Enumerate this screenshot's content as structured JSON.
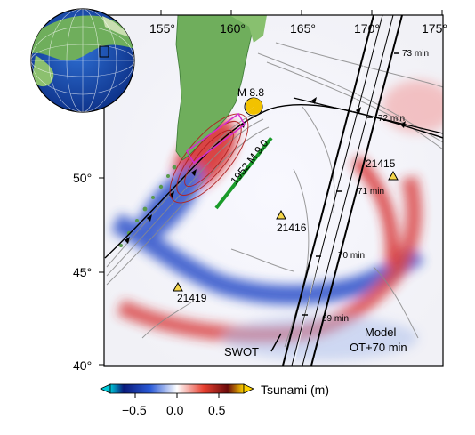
{
  "map": {
    "lon_ticks": [
      "155°",
      "160°",
      "165°",
      "170°",
      "175°"
    ],
    "lat_ticks": [
      "50°",
      "45°",
      "40°"
    ],
    "event_label": "M 8.8",
    "rupture_1952_label": "1952 M 9.0",
    "buoys": [
      {
        "id": "21415",
        "lon": 171.8,
        "lat": 50.2
      },
      {
        "id": "21416",
        "lon": 163.3,
        "lat": 48.2
      },
      {
        "id": "21419",
        "lon": 155.4,
        "lat": 44.5
      }
    ],
    "satellite_track_label": "SWOT",
    "model_label_line1": "Model",
    "model_label_line2": "OT+70 min",
    "timing_labels": [
      "73 min",
      "72 min",
      "71 min",
      "70 min",
      "69 min"
    ],
    "colors": {
      "positive": "#d62828",
      "negative": "#2b4fc9",
      "land": "#6fae5c",
      "rupture_1952": "#1a9b2a",
      "focal_mechanism": "#f2c200",
      "buoy_marker": "#f5d64a",
      "contour": "#888888"
    }
  },
  "colorbar": {
    "title": "Tsunami (m)",
    "tick_labels": [
      "−0.5",
      "0.0",
      "0.5"
    ],
    "range": [
      -0.8,
      0.8
    ],
    "colors": [
      "#00c8d8",
      "#0a1a7a",
      "#2b5bd8",
      "#ffffff",
      "#e84030",
      "#6a0a0a",
      "#ffd200"
    ]
  },
  "inset_globe": {
    "description_icon": "globe-inset"
  }
}
